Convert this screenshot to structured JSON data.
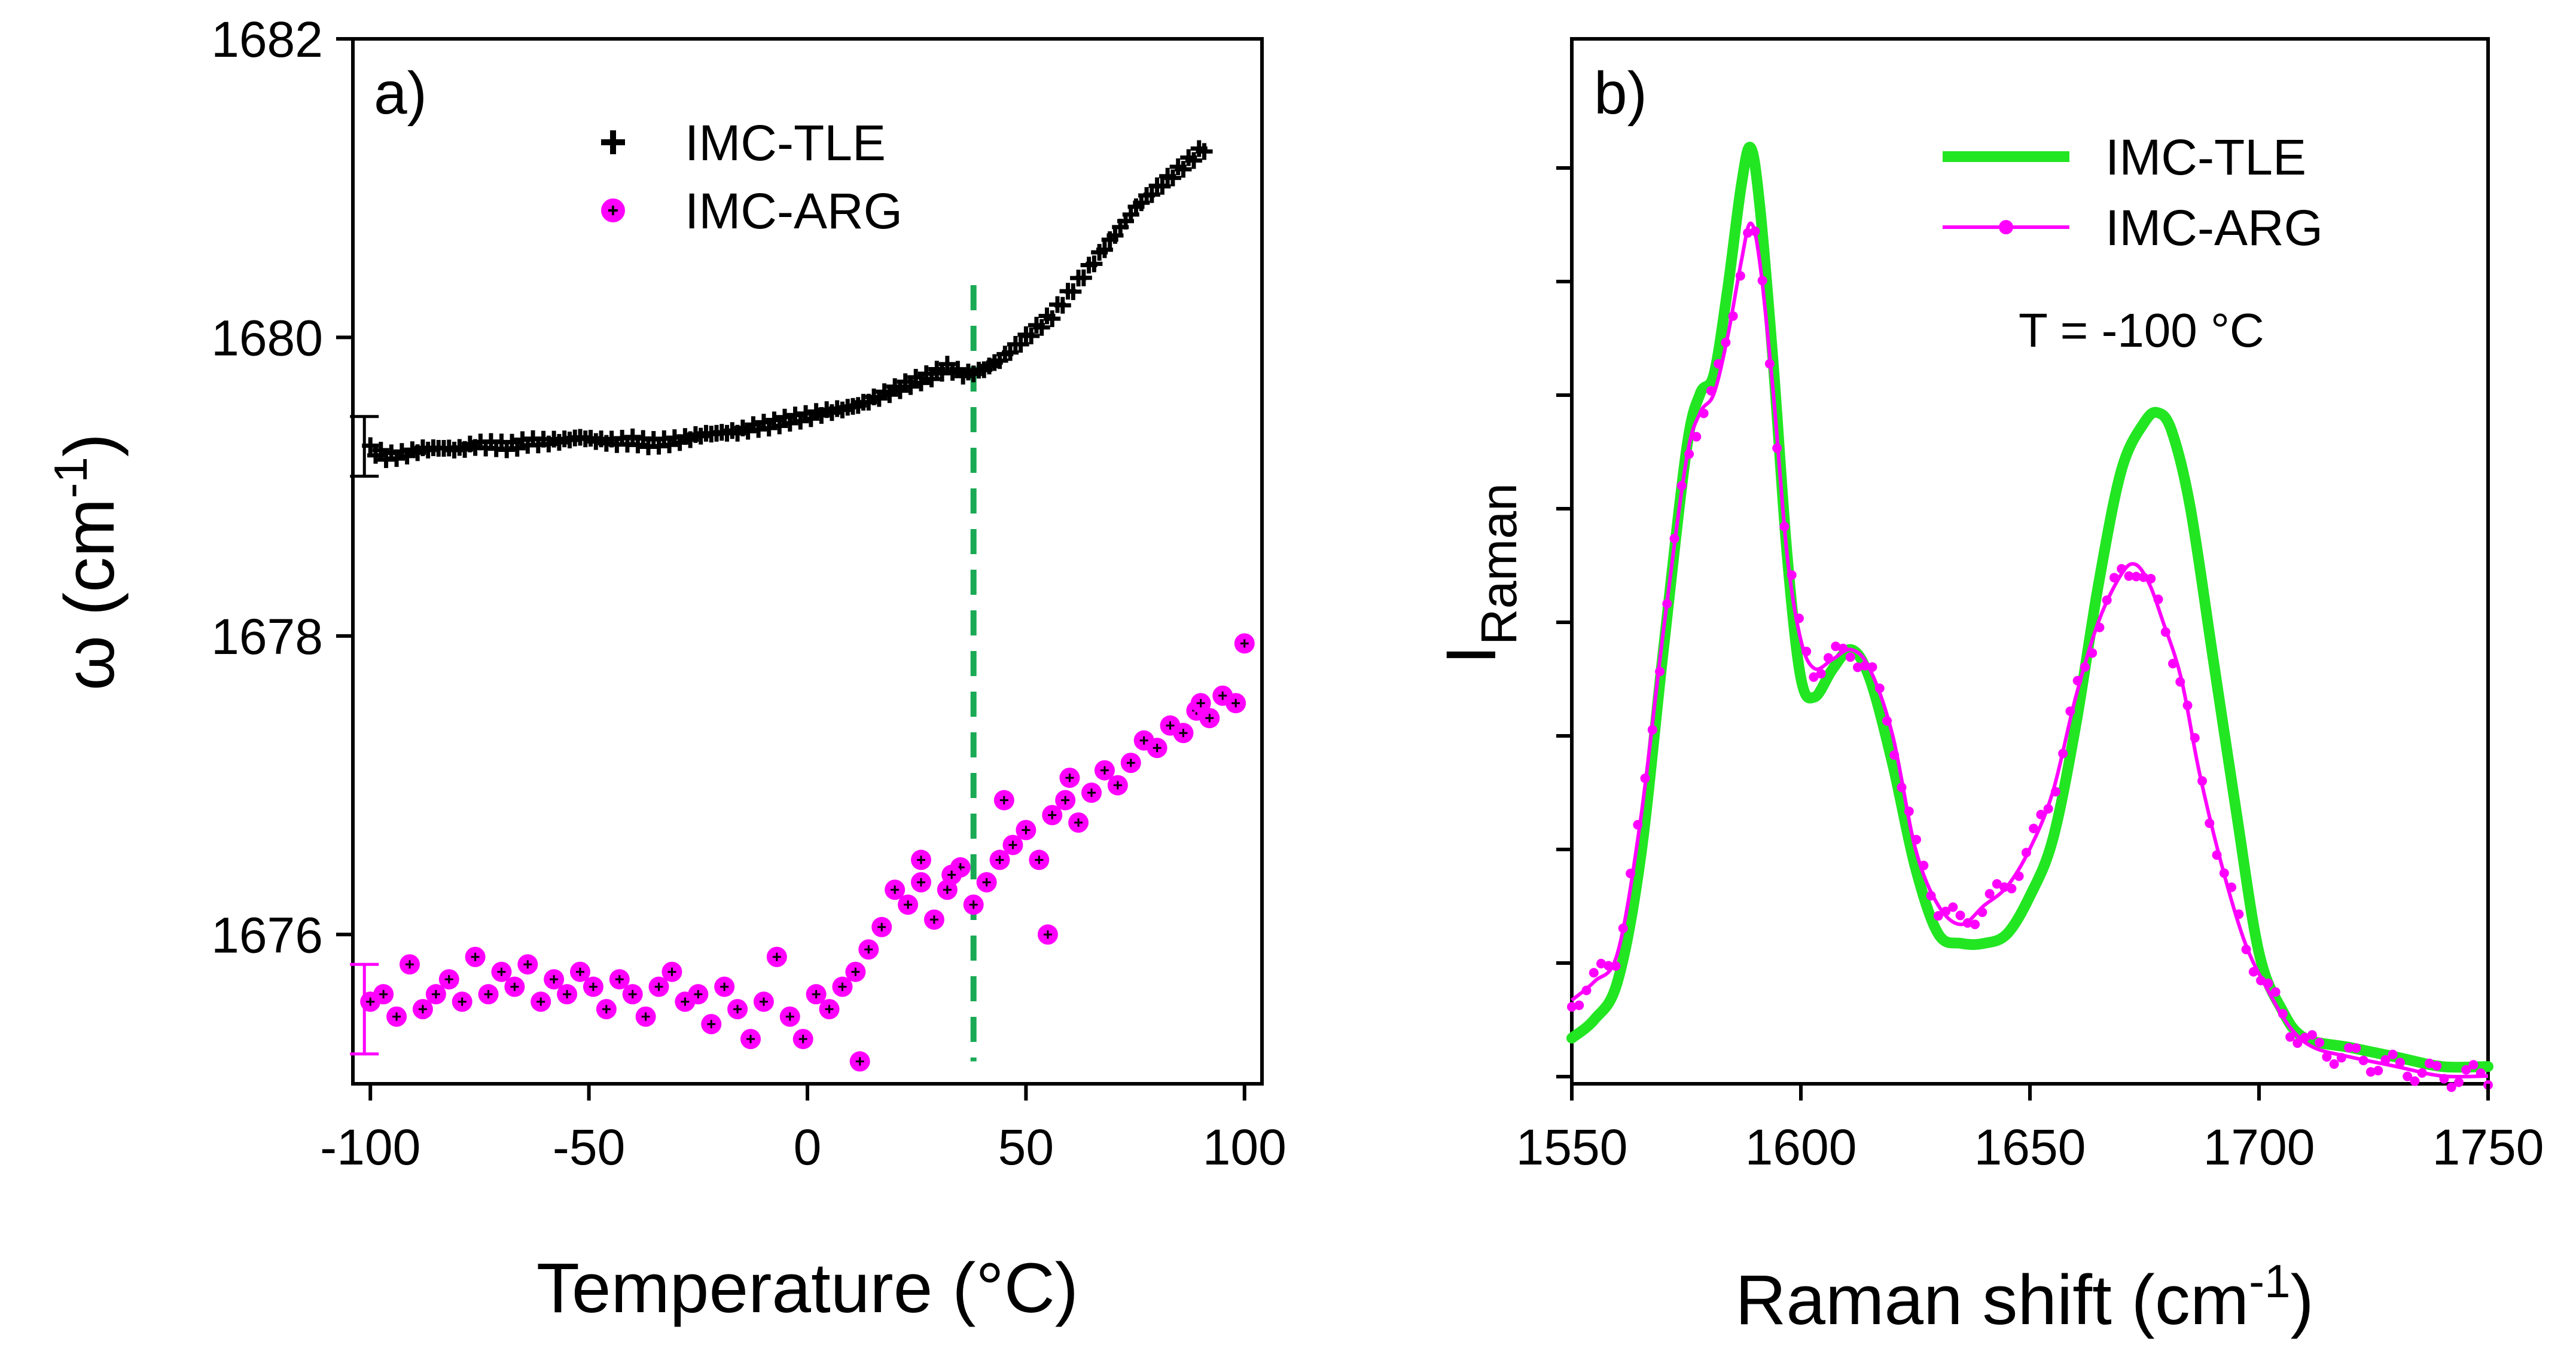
{
  "chart_data": [
    {
      "type": "scatter",
      "panel_label": "a)",
      "xlabel": "Temperature (°C)",
      "ylabel": "ω (cm",
      "ylabel_sup": "-1",
      "ylabel_close": ")",
      "xlim": [
        -104,
        104
      ],
      "ylim": [
        1675.0,
        1682.0
      ],
      "xticks": [
        -100,
        -50,
        0,
        50,
        100
      ],
      "xtick_labels": [
        "-100",
        "-50",
        "0",
        "50",
        "100"
      ],
      "yticks": [
        1676,
        1678,
        1680,
        1682
      ],
      "ytick_labels": [
        "1676",
        "1678",
        "1680",
        "1682"
      ],
      "legend": [
        {
          "label": "IMC-TLE",
          "color": "#000000",
          "marker": "plus"
        },
        {
          "label": "IMC-ARG",
          "color": "#ff00ff",
          "marker": "circle"
        }
      ],
      "vertical_line": {
        "x": 38,
        "color": "#1aaa55",
        "style": "dashed"
      },
      "series": [
        {
          "name": "IMC-TLE",
          "color": "#000000",
          "x": [
            -100,
            -96,
            -92,
            -88,
            -84,
            -80,
            -76,
            -72,
            -68,
            -64,
            -60,
            -56,
            -52,
            -48,
            -44,
            -40,
            -36,
            -32,
            -28,
            -24,
            -20,
            -16,
            -12,
            -8,
            -4,
            0,
            4,
            8,
            12,
            16,
            20,
            24,
            28,
            32,
            36,
            40,
            44,
            48,
            52,
            56,
            60,
            64,
            68,
            72,
            76,
            80,
            84,
            88,
            92
          ],
          "y": [
            1679.25,
            1679.2,
            1679.22,
            1679.25,
            1679.26,
            1679.25,
            1679.28,
            1679.28,
            1679.27,
            1679.3,
            1679.3,
            1679.31,
            1679.33,
            1679.31,
            1679.3,
            1679.31,
            1679.29,
            1679.3,
            1679.32,
            1679.35,
            1679.36,
            1679.37,
            1679.4,
            1679.42,
            1679.45,
            1679.47,
            1679.5,
            1679.52,
            1679.55,
            1679.6,
            1679.65,
            1679.7,
            1679.74,
            1679.8,
            1679.75,
            1679.78,
            1679.85,
            1679.95,
            1680.05,
            1680.15,
            1680.3,
            1680.45,
            1680.6,
            1680.75,
            1680.9,
            1681.0,
            1681.1,
            1681.2,
            1681.3
          ],
          "error_bar": {
            "x": -100,
            "y": 1679.27,
            "err": 0.2
          }
        },
        {
          "name": "IMC-ARG",
          "color": "#ff00ff",
          "x": [
            -100,
            -97,
            -94,
            -91,
            -88,
            -85,
            -82,
            -79,
            -76,
            -73,
            -70,
            -67,
            -64,
            -61,
            -58,
            -55,
            -52,
            -49,
            -46,
            -43,
            -40,
            -37,
            -34,
            -31,
            -28,
            -25,
            -22,
            -19,
            -16,
            -13,
            -10,
            -7,
            -4,
            -1,
            2,
            5,
            8,
            11,
            14,
            17,
            20,
            23,
            26,
            29,
            32,
            35,
            38,
            41,
            44,
            47,
            50,
            53,
            56,
            59,
            62,
            65,
            68,
            71,
            74,
            77,
            80,
            83,
            86,
            89,
            92,
            95,
            98,
            100,
            12,
            55,
            26,
            33,
            45,
            60,
            90
          ],
          "y": [
            1675.55,
            1675.6,
            1675.45,
            1675.8,
            1675.5,
            1675.6,
            1675.7,
            1675.55,
            1675.85,
            1675.6,
            1675.75,
            1675.65,
            1675.8,
            1675.55,
            1675.7,
            1675.6,
            1675.75,
            1675.65,
            1675.5,
            1675.7,
            1675.6,
            1675.45,
            1675.65,
            1675.75,
            1675.55,
            1675.6,
            1675.4,
            1675.65,
            1675.5,
            1675.3,
            1675.55,
            1675.85,
            1675.45,
            1675.3,
            1675.6,
            1675.5,
            1675.65,
            1675.75,
            1675.9,
            1676.05,
            1676.3,
            1676.2,
            1676.35,
            1676.1,
            1676.3,
            1676.45,
            1676.2,
            1676.35,
            1676.5,
            1676.6,
            1676.7,
            1676.5,
            1676.8,
            1676.9,
            1676.75,
            1676.95,
            1677.1,
            1677.0,
            1677.15,
            1677.3,
            1677.25,
            1677.4,
            1677.35,
            1677.5,
            1677.45,
            1677.6,
            1677.55,
            1677.95,
            1675.15,
            1676.0,
            1676.5,
            1676.4,
            1676.9,
            1677.05,
            1677.55
          ],
          "error_bar": {
            "x": -100,
            "y": 1675.5,
            "err": 0.3
          }
        }
      ]
    },
    {
      "type": "line",
      "panel_label": "b)",
      "xlabel": "Raman shift (cm",
      "xlabel_sup": "-1",
      "xlabel_close": ")",
      "ylabel": "I",
      "ylabel_sub": "Raman",
      "xlim": [
        1550,
        1750
      ],
      "ylim": [
        0.0,
        1.0
      ],
      "xticks": [
        1550,
        1600,
        1650,
        1700,
        1750
      ],
      "xtick_labels": [
        "1550",
        "1600",
        "1650",
        "1700",
        "1750"
      ],
      "y_tick_labels_shown": false,
      "annotation": "T = -100 °C",
      "legend": [
        {
          "label": "IMC-TLE",
          "color": "#22e622",
          "style": "thick-line"
        },
        {
          "label": "IMC-ARG",
          "color": "#ff00ff",
          "style": "line-marker"
        }
      ],
      "series": [
        {
          "name": "IMC-TLE",
          "color": "#22e622",
          "x": [
            1550,
            1555,
            1560,
            1565,
            1570,
            1575,
            1578,
            1581,
            1584,
            1587,
            1589,
            1591,
            1594,
            1597,
            1600,
            1603,
            1607,
            1611,
            1615,
            1620,
            1625,
            1630,
            1635,
            1640,
            1645,
            1650,
            1655,
            1660,
            1665,
            1670,
            1675,
            1678,
            1681,
            1685,
            1690,
            1695,
            1700,
            1705,
            1710,
            1720,
            1730,
            1740,
            1750
          ],
          "y": [
            0.04,
            0.06,
            0.1,
            0.23,
            0.45,
            0.66,
            0.72,
            0.74,
            0.83,
            0.94,
            0.98,
            0.92,
            0.75,
            0.55,
            0.42,
            0.4,
            0.43,
            0.45,
            0.42,
            0.33,
            0.22,
            0.15,
            0.14,
            0.14,
            0.15,
            0.19,
            0.25,
            0.37,
            0.52,
            0.64,
            0.69,
            0.7,
            0.68,
            0.6,
            0.44,
            0.28,
            0.13,
            0.07,
            0.04,
            0.03,
            0.02,
            0.01,
            0.01
          ]
        },
        {
          "name": "IMC-ARG",
          "color": "#ff00ff",
          "x": [
            1550,
            1555,
            1560,
            1565,
            1570,
            1575,
            1578,
            1581,
            1584,
            1587,
            1589,
            1591,
            1594,
            1597,
            1600,
            1603,
            1607,
            1611,
            1615,
            1620,
            1625,
            1630,
            1635,
            1640,
            1645,
            1650,
            1655,
            1660,
            1665,
            1670,
            1673,
            1676,
            1679,
            1683,
            1687,
            1692,
            1697,
            1702,
            1707,
            1712,
            1720,
            1730,
            1740,
            1750
          ],
          "y": [
            0.08,
            0.1,
            0.13,
            0.27,
            0.47,
            0.65,
            0.7,
            0.72,
            0.78,
            0.86,
            0.9,
            0.86,
            0.72,
            0.55,
            0.46,
            0.43,
            0.44,
            0.45,
            0.43,
            0.36,
            0.24,
            0.18,
            0.16,
            0.18,
            0.2,
            0.24,
            0.3,
            0.4,
            0.48,
            0.53,
            0.54,
            0.52,
            0.48,
            0.42,
            0.32,
            0.22,
            0.14,
            0.09,
            0.05,
            0.03,
            0.02,
            0.01,
            0.0,
            0.0
          ]
        }
      ]
    }
  ]
}
